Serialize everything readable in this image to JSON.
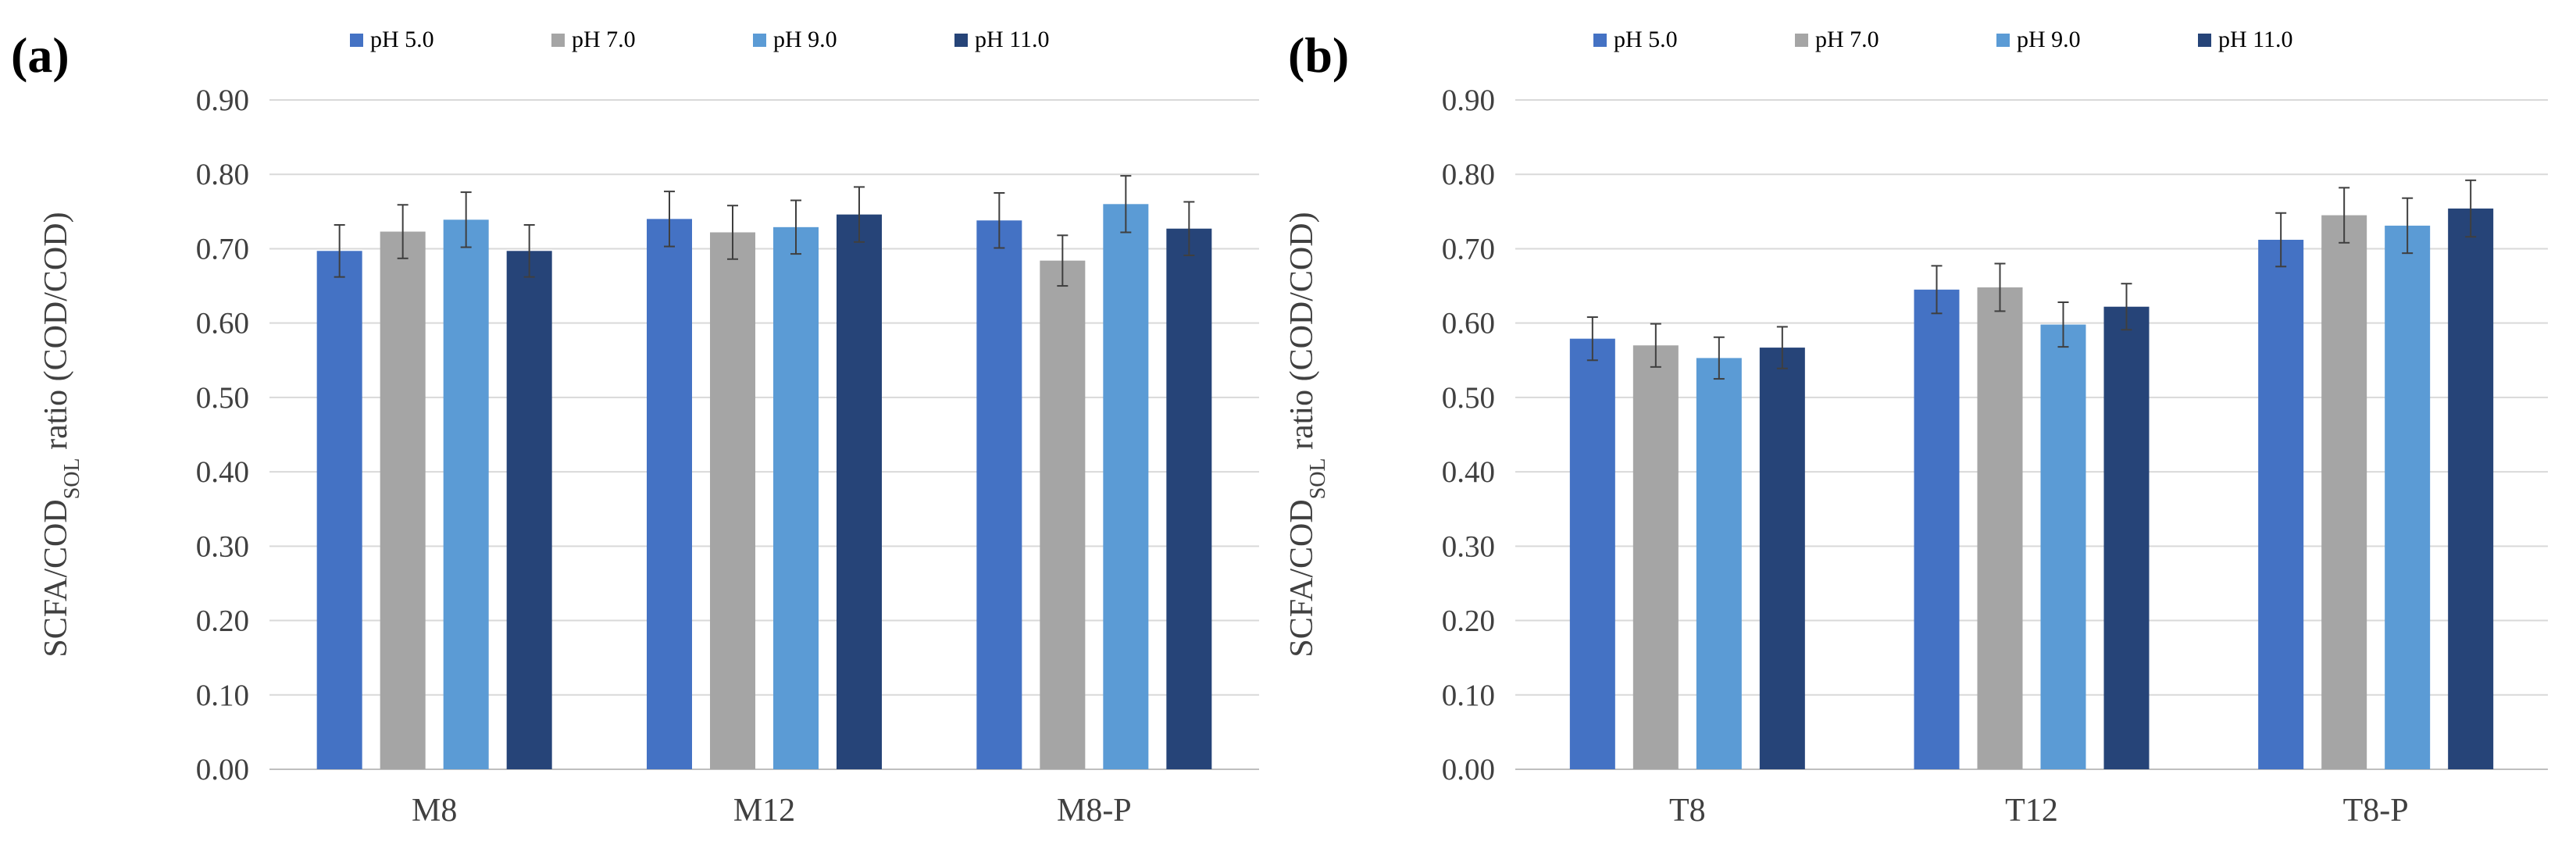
{
  "figure_panels": [
    "(a)",
    "(b)"
  ],
  "colors": {
    "pH 5.0": "#4472C4",
    "pH 7.0": "#A5A5A5",
    "pH 9.0": "#5B9BD5",
    "pH 11.0": "#264478",
    "grid": "#D9D9D9",
    "error_bar": "#3F3F3F"
  },
  "chart_data": [
    {
      "type": "bar",
      "panel": "(a)",
      "categories": [
        "M8",
        "M12",
        "M8-P"
      ],
      "series": [
        {
          "name": "pH 5.0",
          "values": [
            0.697,
            0.74,
            0.738
          ],
          "errors": [
            0.035,
            0.037,
            0.037
          ]
        },
        {
          "name": "pH 7.0",
          "values": [
            0.723,
            0.722,
            0.684
          ],
          "errors": [
            0.036,
            0.036,
            0.034
          ]
        },
        {
          "name": "pH 9.0",
          "values": [
            0.739,
            0.729,
            0.76
          ],
          "errors": [
            0.037,
            0.036,
            0.038
          ]
        },
        {
          "name": "pH 11.0",
          "values": [
            0.697,
            0.746,
            0.727
          ],
          "errors": [
            0.035,
            0.037,
            0.036
          ]
        }
      ],
      "ylabel_main": "SCFA/COD",
      "ylabel_sub": "SOL",
      "ylabel_tail": " ratio (COD/COD)",
      "ylim": [
        0,
        0.9
      ],
      "yticks": [
        "0.00",
        "0.10",
        "0.20",
        "0.30",
        "0.40",
        "0.50",
        "0.60",
        "0.70",
        "0.80",
        "0.90"
      ],
      "grid": true,
      "legend_position": "top-center"
    },
    {
      "type": "bar",
      "panel": "(b)",
      "categories": [
        "T8",
        "T12",
        "T8-P"
      ],
      "series": [
        {
          "name": "pH 5.0",
          "values": [
            0.579,
            0.645,
            0.712
          ],
          "errors": [
            0.029,
            0.032,
            0.036
          ]
        },
        {
          "name": "pH 7.0",
          "values": [
            0.57,
            0.648,
            0.745
          ],
          "errors": [
            0.029,
            0.032,
            0.037
          ]
        },
        {
          "name": "pH 9.0",
          "values": [
            0.553,
            0.598,
            0.731
          ],
          "errors": [
            0.028,
            0.03,
            0.037
          ]
        },
        {
          "name": "pH 11.0",
          "values": [
            0.567,
            0.622,
            0.754
          ],
          "errors": [
            0.028,
            0.031,
            0.038
          ]
        }
      ],
      "ylabel_main": "SCFA/COD",
      "ylabel_sub": "SOL",
      "ylabel_tail": " ratio (COD/COD)",
      "ylim": [
        0,
        0.9
      ],
      "yticks": [
        "0.00",
        "0.10",
        "0.20",
        "0.30",
        "0.40",
        "0.50",
        "0.60",
        "0.70",
        "0.80",
        "0.90"
      ],
      "grid": true,
      "legend_position": "top-center"
    }
  ]
}
